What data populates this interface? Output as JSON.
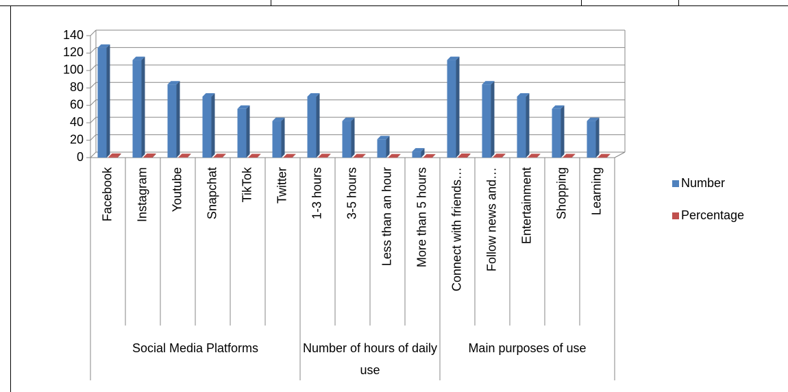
{
  "chart_data": {
    "type": "bar",
    "groups": [
      {
        "label": "Social Media Platforms",
        "categories": [
          "Facebook",
          "Instagram",
          "Youtube",
          "Snapchat",
          "TikTok",
          "Twitter"
        ]
      },
      {
        "label": "Number of hours of daily use",
        "categories": [
          "1-3 hours",
          "3-5 hours",
          "Less than an hour",
          "More than 5 hours"
        ]
      },
      {
        "label": "Main purposes of use",
        "categories": [
          "Connect with friends…",
          "Follow news and…",
          "Entertainment",
          "Shopping",
          "Learning"
        ]
      }
    ],
    "series": [
      {
        "name": "Number",
        "color": "#4f81bd",
        "values": [
          126,
          112,
          84,
          70,
          56,
          42,
          70,
          42,
          21,
          7,
          112,
          84,
          70,
          56,
          42
        ]
      },
      {
        "name": "Percentage",
        "color": "#c0504d",
        "values": [
          0.9,
          0.8,
          0.6,
          0.5,
          0.4,
          0.3,
          0.5,
          0.3,
          0.15,
          0.05,
          0.8,
          0.6,
          0.5,
          0.4,
          0.3
        ]
      }
    ],
    "ylim": [
      0,
      140
    ],
    "yticks": [
      0,
      20,
      40,
      60,
      80,
      100,
      120,
      140
    ],
    "grid": true,
    "legend": "right"
  }
}
